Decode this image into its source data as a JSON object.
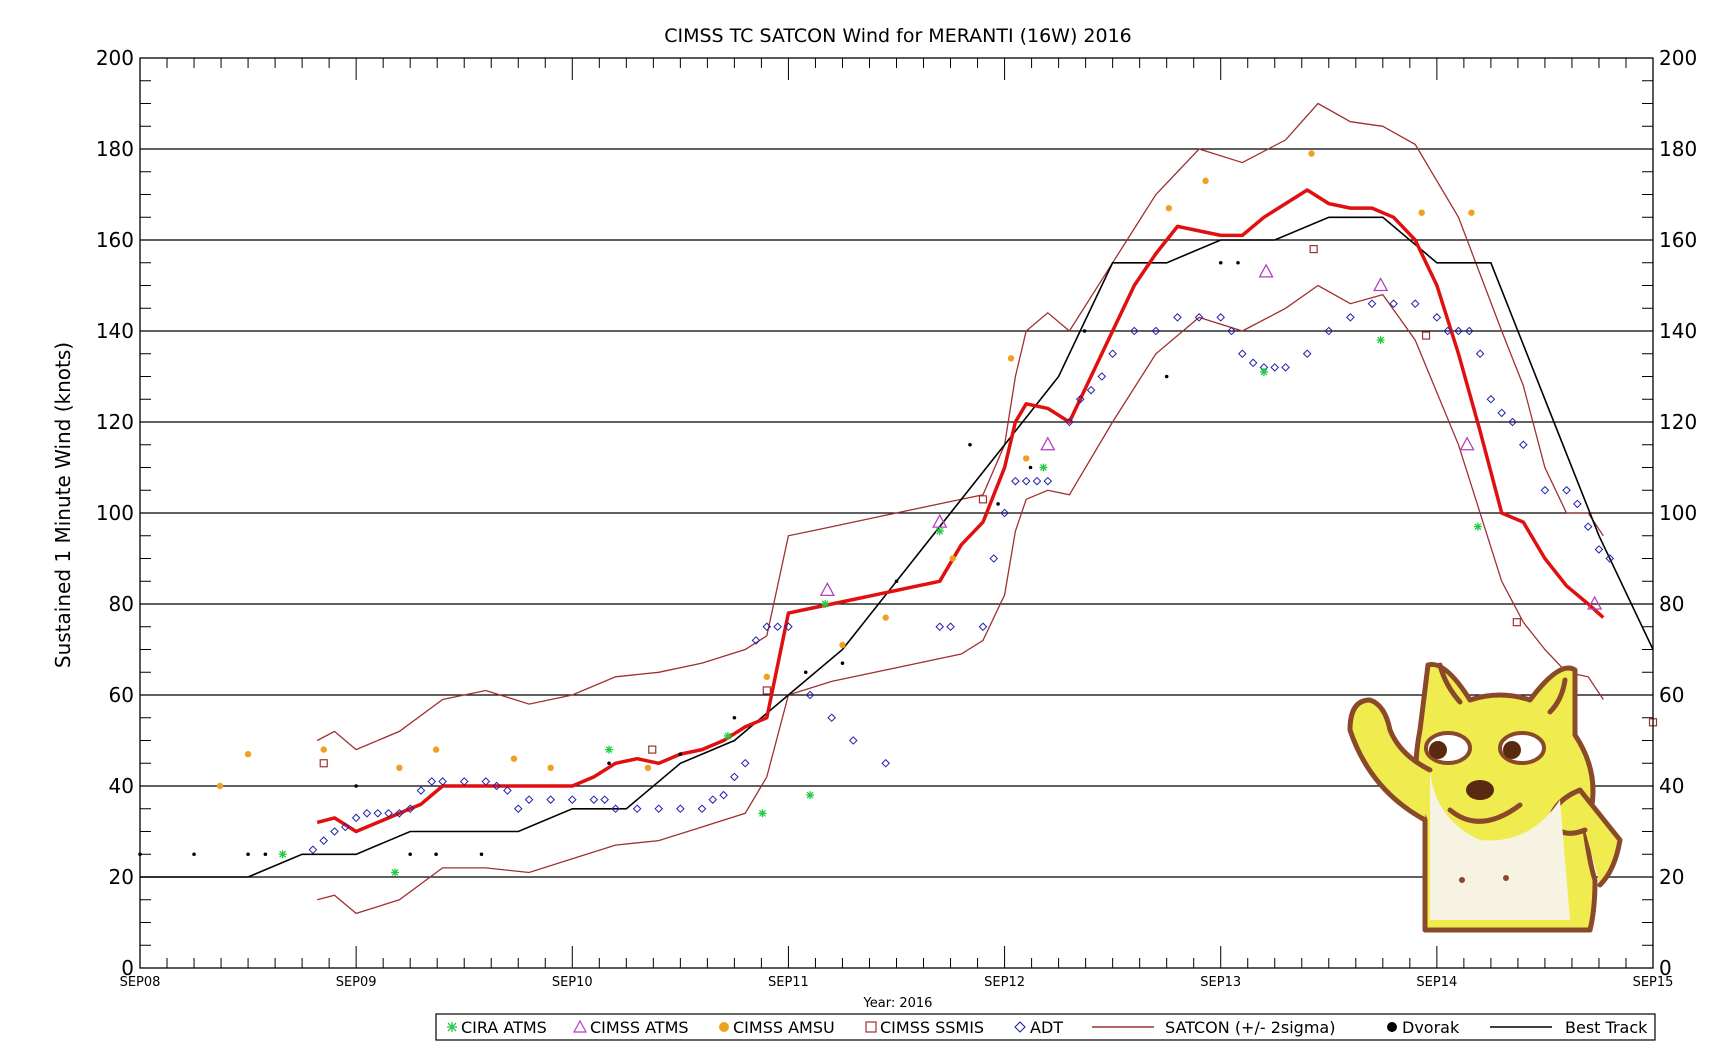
{
  "chart_data": {
    "type": "line",
    "title": "CIMSS TC SATCON Wind for MERANTI (16W) 2016",
    "ylabel": "Sustained 1 Minute Wind (knots)",
    "xlabel": "Year: 2016",
    "ylim": [
      0,
      200
    ],
    "y_ticks": [
      0,
      20,
      40,
      60,
      80,
      100,
      120,
      140,
      160,
      180,
      200
    ],
    "xlim_days": [
      8,
      15
    ],
    "x_ticks": [
      "SEP08",
      "SEP09",
      "SEP10",
      "SEP11",
      "SEP12",
      "SEP13",
      "SEP14",
      "SEP15"
    ],
    "grid": true,
    "legend_position": "bottom",
    "legend": [
      "CIRA ATMS",
      "CIMSS ATMS",
      "CIMSS AMSU",
      "CIMSS SSMIS",
      "ADT",
      "SATCON (+/- 2sigma)",
      "Dvorak",
      "Best Track"
    ],
    "colors": {
      "satcon": "#e01010",
      "satcon_band": "#a03030",
      "cira_atms": "#22cc44",
      "cimss_atms": "#b040c0",
      "cimss_amsu": "#f0a020",
      "cimss_ssmis": "#a03030",
      "adt": "#2222aa",
      "dvorak": "#000000",
      "best_track": "#000000",
      "mascot_body": "#f0ec50",
      "mascot_outline": "#8a4a2a"
    },
    "series": [
      {
        "name": "Best Track",
        "x": [
          "SEP08 00Z",
          "SEP08 12Z",
          "SEP08 18Z",
          "SEP09 00Z",
          "SEP09 06Z",
          "SEP09 12Z",
          "SEP09 18Z",
          "SEP10 00Z",
          "SEP10 06Z",
          "SEP10 12Z",
          "SEP10 18Z",
          "SEP11 00Z",
          "SEP11 06Z",
          "SEP11 12Z",
          "SEP11 18Z",
          "SEP12 00Z",
          "SEP12 06Z",
          "SEP12 12Z",
          "SEP12 18Z",
          "SEP13 00Z",
          "SEP13 06Z",
          "SEP13 12Z",
          "SEP13 18Z",
          "SEP14 00Z",
          "SEP14 06Z",
          "SEP14 12Z",
          "SEP14 18Z",
          "SEP15 00Z"
        ],
        "days": [
          8,
          8.5,
          8.75,
          9,
          9.25,
          9.5,
          9.75,
          10,
          10.25,
          10.5,
          10.75,
          11,
          11.25,
          11.5,
          11.75,
          12,
          12.25,
          12.5,
          12.75,
          13,
          13.25,
          13.5,
          13.75,
          14,
          14.25,
          14.5,
          14.75,
          15
        ],
        "values": [
          20,
          20,
          25,
          25,
          30,
          30,
          30,
          35,
          35,
          45,
          50,
          60,
          70,
          85,
          100,
          115,
          130,
          155,
          155,
          160,
          160,
          165,
          165,
          155,
          155,
          125,
          95,
          70
        ]
      },
      {
        "name": "SATCON (+/- 2sigma)",
        "days": [
          8.82,
          8.9,
          9.0,
          9.1,
          9.2,
          9.3,
          9.4,
          9.5,
          9.6,
          9.7,
          9.8,
          9.9,
          10.0,
          10.1,
          10.2,
          10.3,
          10.4,
          10.5,
          10.6,
          10.7,
          10.8,
          10.9,
          11.0,
          11.1,
          11.2,
          11.3,
          11.4,
          11.5,
          11.6,
          11.7,
          11.8,
          11.9,
          12.0,
          12.05,
          12.1,
          12.2,
          12.3,
          12.4,
          12.5,
          12.6,
          12.7,
          12.8,
          12.9,
          13.0,
          13.1,
          13.2,
          13.3,
          13.4,
          13.5,
          13.6,
          13.7,
          13.8,
          13.9,
          14.0,
          14.1,
          14.2,
          14.3,
          14.4,
          14.5,
          14.6,
          14.7,
          14.77
        ],
        "values": [
          32,
          33,
          30,
          32,
          34,
          36,
          40,
          40,
          40,
          40,
          40,
          40,
          40,
          42,
          45,
          46,
          45,
          47,
          48,
          50,
          53,
          55,
          78,
          79,
          80,
          81,
          82,
          83,
          84,
          85,
          93,
          98,
          110,
          120,
          124,
          123,
          120,
          130,
          140,
          150,
          157,
          163,
          162,
          161,
          161,
          165,
          168,
          171,
          168,
          167,
          167,
          165,
          160,
          150,
          135,
          118,
          100,
          98,
          90,
          84,
          80,
          77
        ]
      },
      {
        "name": "SATCON +2sigma",
        "days": [
          8.82,
          8.9,
          9.0,
          9.2,
          9.4,
          9.6,
          9.8,
          10.0,
          10.2,
          10.4,
          10.6,
          10.8,
          10.9,
          11.0,
          11.2,
          11.4,
          11.6,
          11.8,
          11.9,
          12.0,
          12.05,
          12.1,
          12.2,
          12.3,
          12.5,
          12.7,
          12.9,
          13.1,
          13.3,
          13.45,
          13.6,
          13.75,
          13.9,
          14.1,
          14.3,
          14.4,
          14.5,
          14.6,
          14.7,
          14.77
        ],
        "values": [
          50,
          52,
          48,
          52,
          59,
          61,
          58,
          60,
          64,
          65,
          67,
          70,
          73,
          95,
          97,
          99,
          101,
          103,
          104,
          115,
          130,
          140,
          144,
          140,
          155,
          170,
          180,
          177,
          182,
          190,
          186,
          185,
          181,
          165,
          140,
          128,
          110,
          100,
          100,
          95
        ]
      },
      {
        "name": "SATCON -2sigma",
        "days": [
          8.82,
          8.9,
          9.0,
          9.2,
          9.4,
          9.6,
          9.8,
          10.0,
          10.2,
          10.4,
          10.6,
          10.8,
          10.9,
          11.0,
          11.2,
          11.4,
          11.6,
          11.8,
          11.9,
          12.0,
          12.05,
          12.1,
          12.2,
          12.3,
          12.5,
          12.7,
          12.9,
          13.1,
          13.3,
          13.45,
          13.6,
          13.75,
          13.9,
          14.1,
          14.3,
          14.4,
          14.5,
          14.6,
          14.7,
          14.77
        ],
        "values": [
          15,
          16,
          12,
          15,
          22,
          22,
          21,
          24,
          27,
          28,
          31,
          34,
          42,
          60,
          63,
          65,
          67,
          69,
          72,
          82,
          96,
          103,
          105,
          104,
          120,
          135,
          143,
          140,
          145,
          150,
          146,
          148,
          138,
          115,
          85,
          76,
          70,
          65,
          64,
          59
        ]
      },
      {
        "name": "ADT",
        "days": [
          8.8,
          8.85,
          8.9,
          8.95,
          9.0,
          9.05,
          9.1,
          9.15,
          9.2,
          9.25,
          9.3,
          9.35,
          9.4,
          9.5,
          9.6,
          9.65,
          9.7,
          9.75,
          9.8,
          9.9,
          10.0,
          10.1,
          10.15,
          10.2,
          10.3,
          10.4,
          10.5,
          10.6,
          10.65,
          10.7,
          10.75,
          10.8,
          10.85,
          10.9,
          10.95,
          11.0,
          11.1,
          11.2,
          11.3,
          11.45,
          11.7,
          11.75,
          11.9,
          11.95,
          12.0,
          12.05,
          12.1,
          12.15,
          12.2,
          12.3,
          12.35,
          12.4,
          12.45,
          12.5,
          12.6,
          12.7,
          12.8,
          12.9,
          13.0,
          13.05,
          13.1,
          13.15,
          13.2,
          13.25,
          13.3,
          13.4,
          13.5,
          13.6,
          13.7,
          13.8,
          13.9,
          14.0,
          14.05,
          14.1,
          14.15,
          14.2,
          14.25,
          14.3,
          14.35,
          14.4,
          14.5,
          14.6,
          14.65,
          14.7,
          14.75,
          14.8
        ],
        "values": [
          26,
          28,
          30,
          31,
          33,
          34,
          34,
          34,
          34,
          35,
          39,
          41,
          41,
          41,
          41,
          40,
          39,
          35,
          37,
          37,
          37,
          37,
          37,
          35,
          35,
          35,
          35,
          35,
          37,
          38,
          42,
          45,
          72,
          75,
          75,
          75,
          60,
          55,
          50,
          45,
          75,
          75,
          75,
          90,
          100,
          107,
          107,
          107,
          107,
          120,
          125,
          127,
          130,
          135,
          140,
          140,
          143,
          143,
          143,
          140,
          135,
          133,
          132,
          132,
          132,
          135,
          140,
          143,
          146,
          146,
          146,
          143,
          140,
          140,
          140,
          135,
          125,
          122,
          120,
          115,
          105,
          105,
          102,
          97,
          92,
          90
        ]
      },
      {
        "name": "CIRA ATMS",
        "days": [
          8.66,
          9.18,
          10.17,
          10.72,
          10.88,
          11.1,
          11.17,
          11.7,
          12.18,
          13.2,
          13.74,
          14.19
        ],
        "values": [
          25,
          21,
          48,
          51,
          34,
          38,
          80,
          96,
          110,
          131,
          138,
          97
        ]
      },
      {
        "name": "CIMSS ATMS",
        "days": [
          11.18,
          11.7,
          12.2,
          13.21,
          13.74,
          14.14,
          14.73
        ],
        "values": [
          83,
          98,
          115,
          153,
          150,
          115,
          80
        ]
      },
      {
        "name": "CIMSS AMSU",
        "days": [
          8.37,
          8.5,
          8.85,
          9.2,
          9.37,
          9.73,
          9.9,
          10.35,
          10.9,
          11.25,
          11.45,
          11.76,
          12.03,
          12.1,
          12.76,
          12.93,
          13.42,
          13.93,
          14.16
        ],
        "values": [
          40,
          47,
          48,
          44,
          48,
          46,
          44,
          44,
          64,
          71,
          77,
          90,
          134,
          112,
          167,
          173,
          179,
          166,
          166
        ]
      },
      {
        "name": "CIMSS SSMIS",
        "days": [
          8.85,
          10.37,
          10.9,
          11.9,
          13.43,
          13.95,
          14.37,
          15.0
        ],
        "values": [
          45,
          48,
          61,
          103,
          158,
          139,
          76,
          54
        ]
      },
      {
        "name": "Dvorak",
        "days": [
          8.0,
          8.25,
          8.5,
          8.58,
          9.0,
          9.25,
          9.37,
          9.58,
          10.17,
          10.5,
          10.75,
          11.08,
          11.25,
          11.5,
          11.84,
          11.97,
          12.12,
          12.37,
          12.75,
          13.0,
          13.08
        ],
        "values": [
          25,
          25,
          25,
          25,
          40,
          25,
          25,
          25,
          45,
          47,
          55,
          65,
          67,
          85,
          115,
          102,
          110,
          140,
          130,
          155,
          155
        ]
      }
    ]
  }
}
